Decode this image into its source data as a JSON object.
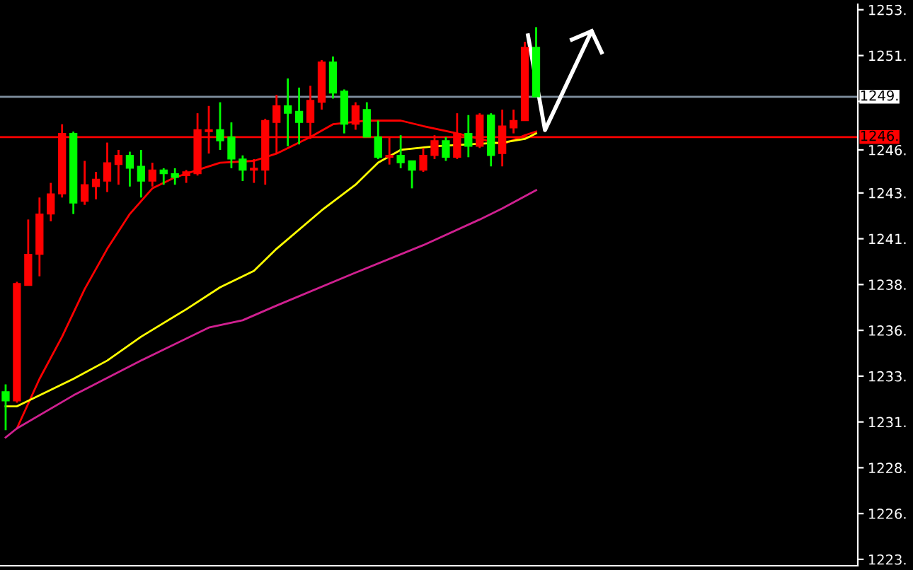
{
  "chart_data": {
    "type": "candlestick",
    "categories": [
      null,
      null,
      null,
      null,
      null,
      null,
      null,
      null,
      null,
      null,
      null,
      null,
      null,
      null,
      null,
      null,
      null,
      null,
      null,
      null,
      null,
      null,
      null,
      null,
      null,
      null,
      null,
      null,
      null,
      null,
      null,
      null,
      null,
      null,
      null,
      null,
      null,
      null,
      null,
      null,
      null,
      null,
      null,
      null,
      null,
      null,
      null,
      null,
      null,
      null,
      null,
      null,
      null,
      null,
      null,
      null,
      null,
      null,
      null,
      null,
      null,
      null,
      null,
      null,
      null,
      null,
      null,
      null,
      null,
      null,
      null,
      null,
      null,
      null,
      null,
      null
    ],
    "ohlc": [
      [
        1232.6,
        1233.0,
        1230.5,
        1232.1
      ],
      [
        1232.1,
        1238.6,
        1232.0,
        1238.5
      ],
      [
        1238.4,
        1242.0,
        1238.4,
        1240.1
      ],
      [
        1240.1,
        1243.2,
        1238.9,
        1242.3
      ],
      [
        1242.3,
        1244.0,
        1241.9,
        1243.4
      ],
      [
        1243.4,
        1247.2,
        1243.2,
        1246.7
      ],
      [
        1246.7,
        1246.8,
        1242.3,
        1242.9
      ],
      [
        1243.0,
        1245.2,
        1242.8,
        1243.9
      ],
      [
        1243.8,
        1244.6,
        1243.1,
        1244.2
      ],
      [
        1244.1,
        1246.2,
        1243.5,
        1245.1
      ],
      [
        1245.0,
        1245.8,
        1243.9,
        1245.5
      ],
      [
        1245.5,
        1245.7,
        1243.8,
        1244.8
      ],
      [
        1244.9,
        1245.8,
        1243.2,
        1244.1
      ],
      [
        1244.1,
        1245.1,
        1243.8,
        1244.7
      ],
      [
        1244.7,
        1244.8,
        1243.9,
        1244.5
      ],
      [
        1244.5,
        1244.8,
        1243.9,
        1244.3
      ],
      [
        1244.4,
        1244.7,
        1244.0,
        1244.6
      ],
      [
        1244.5,
        1247.8,
        1244.4,
        1246.9
      ],
      [
        1246.8,
        1248.2,
        1245.6,
        1246.9
      ],
      [
        1246.9,
        1248.4,
        1245.8,
        1246.3
      ],
      [
        1246.5,
        1247.3,
        1244.8,
        1245.3
      ],
      [
        1245.3,
        1245.5,
        1244.1,
        1244.7
      ],
      [
        1244.7,
        1245.3,
        1244.0,
        1244.8
      ],
      [
        1244.7,
        1247.5,
        1243.9,
        1247.4
      ],
      [
        1247.3,
        1248.8,
        1245.6,
        1248.2
      ],
      [
        1248.2,
        1249.7,
        1246.0,
        1247.8
      ],
      [
        1247.9,
        1249.2,
        1246.1,
        1247.3
      ],
      [
        1247.3,
        1249.3,
        1246.4,
        1248.5
      ],
      [
        1248.4,
        1250.7,
        1248.0,
        1250.6
      ],
      [
        1250.6,
        1250.9,
        1248.6,
        1248.9
      ],
      [
        1249.0,
        1249.1,
        1246.7,
        1247.2
      ],
      [
        1247.2,
        1248.4,
        1246.9,
        1248.2
      ],
      [
        1248.0,
        1248.4,
        1246.5,
        1246.5
      ],
      [
        1246.5,
        1247.4,
        1245.3,
        1245.4
      ],
      [
        1245.4,
        1246.5,
        1245.0,
        1245.5
      ],
      [
        1245.5,
        1246.6,
        1244.8,
        1245.1
      ],
      [
        1245.2,
        1245.2,
        1243.7,
        1244.7
      ],
      [
        1244.7,
        1245.9,
        1244.6,
        1245.5
      ],
      [
        1245.5,
        1246.6,
        1245.3,
        1246.3
      ],
      [
        1246.3,
        1246.5,
        1245.2,
        1245.4
      ],
      [
        1245.4,
        1247.8,
        1245.3,
        1246.7
      ],
      [
        1246.7,
        1247.7,
        1245.4,
        1246.0
      ],
      [
        1246.0,
        1247.8,
        1245.9,
        1247.7
      ],
      [
        1247.7,
        1247.8,
        1244.9,
        1245.5
      ],
      [
        1245.6,
        1248.0,
        1244.9,
        1247.1
      ],
      [
        1247.0,
        1248.0,
        1246.7,
        1247.4
      ],
      [
        1247.4,
        1251.7,
        1247.4,
        1251.4
      ],
      [
        1251.4,
        1252.5,
        1248.7,
        1248.7
      ],
      null,
      null,
      null,
      null,
      null,
      null,
      null,
      null,
      null,
      null,
      null,
      null,
      null,
      null,
      null,
      null,
      null,
      null,
      null,
      null,
      null,
      null,
      null,
      null,
      null,
      null,
      null,
      null
    ],
    "colors": [
      "#00ff00",
      "#ff0000",
      "#ff0000",
      "#ff0000",
      "#ff0000",
      "#ff0000",
      "#00ff00",
      "#ff0000",
      "#ff0000",
      "#ff0000",
      "#ff0000",
      "#00ff00",
      "#00ff00",
      "#ff0000",
      "#00ff00",
      "#00ff00",
      "#ff0000",
      "#ff0000",
      "#ff0000",
      "#00ff00",
      "#00ff00",
      "#00ff00",
      "#ff0000",
      "#ff0000",
      "#ff0000",
      "#00ff00",
      "#00ff00",
      "#ff0000",
      "#ff0000",
      "#00ff00",
      "#00ff00",
      "#ff0000",
      "#00ff00",
      "#00ff00",
      "#ff0000",
      "#00ff00",
      "#00ff00",
      "#ff0000",
      "#ff0000",
      "#00ff00",
      "#ff0000",
      "#00ff00",
      "#ff0000",
      "#00ff00",
      "#ff0000",
      "#ff0000",
      "#ff0000",
      "#00ff00",
      null,
      null,
      null,
      null,
      null,
      null,
      null,
      null,
      null,
      null,
      null,
      null,
      null,
      null,
      null,
      null,
      null,
      null,
      null,
      null,
      null,
      null,
      null,
      null,
      null,
      null,
      null,
      null
    ],
    "series": [
      {
        "type": "line",
        "color": "#ff0000",
        "values": [
          null,
          1230.6,
          null,
          1233.3,
          null,
          1235.6,
          null,
          1238.2,
          null,
          1240.4,
          null,
          1242.3,
          null,
          1243.7,
          null,
          1244.3,
          null,
          1244.7,
          null,
          1245.1,
          null,
          null,
          1245.2,
          null,
          1245.6,
          null,
          null,
          1246.5,
          null,
          1247.2,
          null,
          null,
          1247.4,
          null,
          null,
          1247.4,
          null,
          1247.1,
          null,
          null,
          1246.7,
          null,
          1246.4,
          null,
          1246.1,
          null,
          1246.6,
          1246.8,
          null,
          null,
          null,
          null,
          null,
          null,
          null,
          null,
          null,
          null,
          null,
          null,
          null,
          null,
          null,
          null,
          null,
          null,
          null,
          null,
          null,
          null,
          null,
          null,
          null,
          null,
          null,
          null
        ]
      },
      {
        "type": "line",
        "color": "#ffff00",
        "values": [
          1231.8,
          1231.8,
          null,
          null,
          1232.7,
          null,
          1233.3,
          null,
          null,
          1234.3,
          null,
          null,
          1235.6,
          null,
          null,
          null,
          1237.1,
          null,
          null,
          1238.3,
          null,
          null,
          1239.2,
          null,
          1240.4,
          null,
          null,
          null,
          1242.5,
          null,
          null,
          1243.9,
          null,
          1245.1,
          null,
          1245.8,
          null,
          null,
          1246.0,
          null,
          null,
          1246.1,
          null,
          null,
          1246.2,
          null,
          1246.4,
          1246.7,
          null,
          null,
          null,
          null,
          null,
          null,
          null,
          null,
          null,
          null,
          null,
          null,
          null,
          null,
          null,
          null,
          null,
          null,
          null,
          null,
          null,
          null,
          null,
          null,
          null,
          null,
          null,
          null
        ]
      },
      {
        "type": "line",
        "color": "#d02090",
        "values": [
          1230.1,
          1230.6,
          null,
          null,
          null,
          null,
          1232.4,
          null,
          null,
          null,
          null,
          null,
          1234.3,
          null,
          null,
          null,
          null,
          null,
          1236.1,
          null,
          null,
          1236.5,
          null,
          null,
          1237.3,
          null,
          null,
          null,
          null,
          null,
          null,
          1239.1,
          null,
          null,
          null,
          null,
          null,
          1240.6,
          null,
          null,
          null,
          null,
          1242.0,
          null,
          1242.6,
          null,
          null,
          1243.6,
          null,
          null,
          null,
          null,
          null,
          null,
          null,
          null,
          null,
          null,
          null,
          null,
          null,
          null,
          null,
          null,
          null,
          null,
          null,
          null,
          null,
          null,
          null,
          null,
          null,
          null,
          null,
          null
        ]
      }
    ],
    "ylim": [
      1223.1,
      1253.75
    ],
    "yticks": [
      {
        "value": 1223.45,
        "label": "1223."
      },
      {
        "value": 1225.95,
        "label": "1226."
      },
      {
        "value": 1228.45,
        "label": "1228."
      },
      {
        "value": 1230.95,
        "label": "1231."
      },
      {
        "value": 1233.45,
        "label": "1233."
      },
      {
        "value": 1235.95,
        "label": "1236."
      },
      {
        "value": 1238.45,
        "label": "1238."
      },
      {
        "value": 1240.95,
        "label": "1241."
      },
      {
        "value": 1243.45,
        "label": "1243."
      },
      {
        "value": 1245.8,
        "label": "1246."
      },
      {
        "value": 1248.45,
        "label": null
      },
      {
        "value": 1250.95,
        "label": "1251."
      },
      {
        "value": 1253.45,
        "label": "1253."
      }
    ],
    "ref_lines": [
      {
        "axis": "y",
        "value": 1248.7,
        "label": "1249.",
        "color": "#8090a0"
      },
      {
        "axis": "y",
        "value": 1246.5,
        "label": "1246.",
        "color": "#ff0000"
      }
    ],
    "tick_labels": "y",
    "grid": false
  }
}
